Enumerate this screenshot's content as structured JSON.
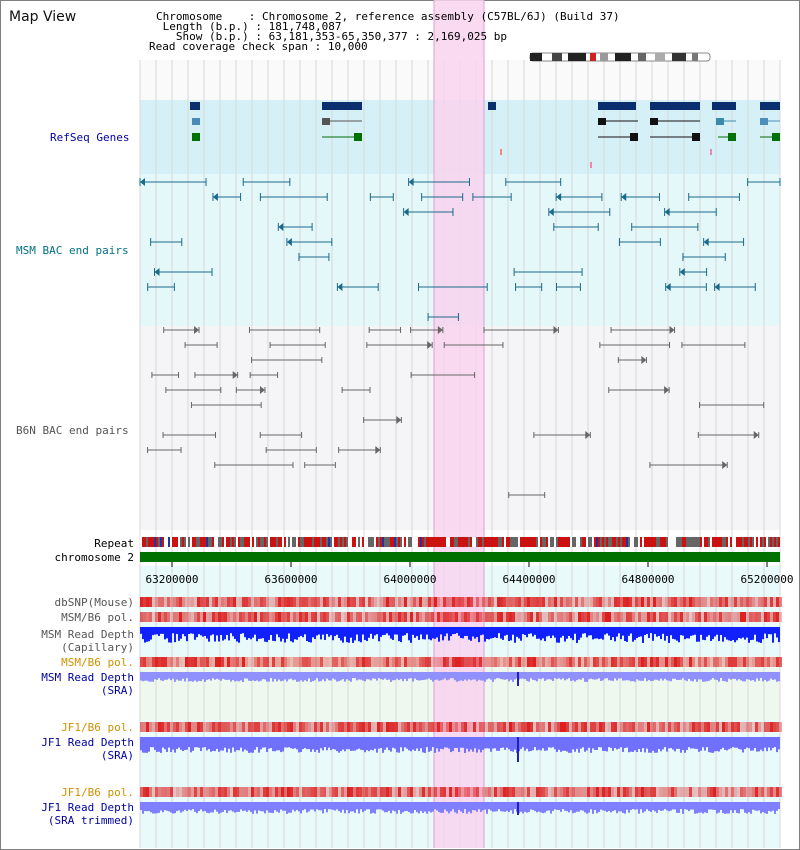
{
  "app": {
    "title": "Map View"
  },
  "info": {
    "chromosome_key": "Chromosome",
    "chromosome_val": "Chromosome 2, reference assembly (C57BL/6J) (Build 37)",
    "length_key": "Length (b.p.)",
    "length_val": "181,748,087",
    "show_key": "Show (b.p.)",
    "show_val": "63,181,353-65,350,377 : 2,169,025 bp",
    "coverage_key": "Read coverage check span",
    "coverage_val": "10,000"
  },
  "tracks": {
    "refseq": "RefSeq Genes",
    "msm_bac": "MSM BAC end pairs",
    "b6n_bac": "B6N BAC end pairs",
    "repeat": "Repeat",
    "chromosome": "chromosome 2",
    "dbsnp": "dbSNP(Mouse)",
    "msm_b6_pol_1": "MSM/B6 pol.",
    "msm_depth_cap_1": "MSM Read Depth",
    "msm_depth_cap_2": "(Capillary)",
    "msm_b6_pol_2": "MSM/B6 pol.",
    "msm_depth_sra_1": "MSM Read Depth",
    "msm_depth_sra_2": "(SRA)",
    "jf1_b6_pol_1": "JF1/B6 pol.",
    "jf1_depth_sra_1": "JF1 Read Depth",
    "jf1_depth_sra_2": "(SRA)",
    "jf1_b6_pol_2": "JF1/B6 pol.",
    "jf1_depth_trim_1": "JF1 Read Depth",
    "jf1_depth_trim_2": "(SRA trimmed)"
  },
  "axis": {
    "ticks": [
      "63200000",
      "63600000",
      "64000000",
      "64400000",
      "64800000",
      "65200000"
    ]
  },
  "colors": {
    "refseq_bg": "#d6f0f8",
    "msm_bg": "#e4f8fa",
    "b6n_bg": "#f5f5f8",
    "highlight": "#f8d4ef",
    "gene": "#0a2e6e",
    "bac_msm": "#1a6a8a",
    "bac_b6n": "#666666",
    "chrom_bar": "#007000",
    "label_blue": "#0000a0",
    "label_teal": "#007080",
    "label_orange": "#d09000"
  }
}
